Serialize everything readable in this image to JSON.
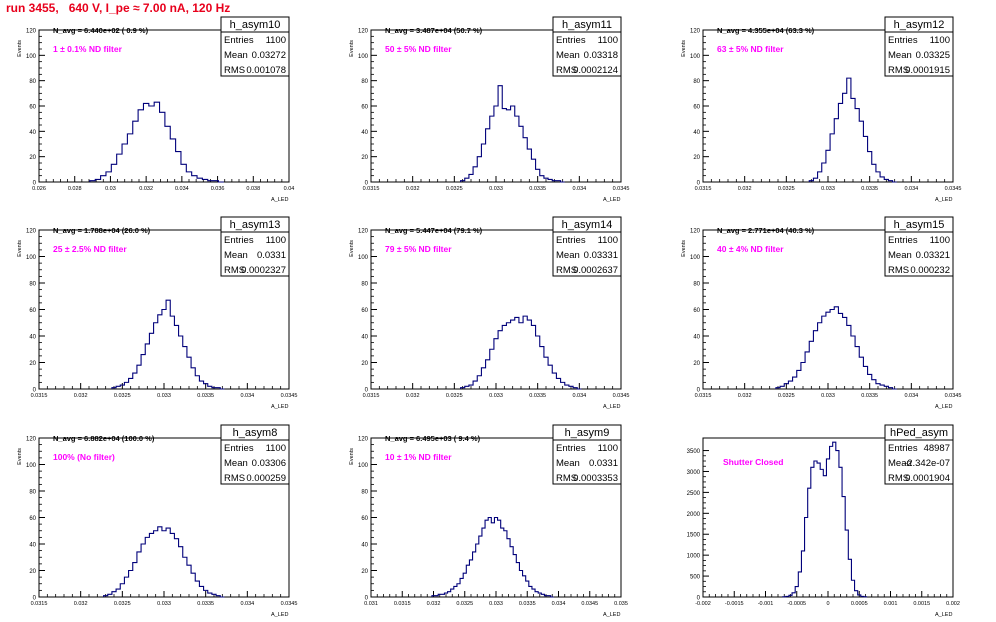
{
  "page_title": "run 3455,   640 V, I_pe ≈ 7.00 nA, 120 Hz",
  "colors": {
    "title": "#e8001c",
    "histogram": "#00007a",
    "filter_label": "#ff00ff",
    "frame": "#000000"
  },
  "y_axis_label": "Events",
  "chart_data": [
    {
      "type": "bar",
      "histogram": "h_asym10",
      "title": "h_asym10",
      "xlabel": "A_LED",
      "ylabel": "Events",
      "nav": "N_avg = 6.440e+02 ( 0.9 %)",
      "filter": "1 ± 0.1% ND filter",
      "stats": {
        "entries": "1100",
        "mean": "0.03272",
        "rms": "0.001078"
      },
      "xlim": [
        0.026,
        0.04
      ],
      "ylim": [
        0,
        120
      ],
      "xticks": [
        "0.026",
        "0.028",
        "0.03",
        "0.032",
        "0.034",
        "0.036",
        "0.038",
        "0.04"
      ],
      "yticks": [
        "0",
        "20",
        "40",
        "60",
        "80",
        "100",
        "120"
      ],
      "x": [
        0.029,
        0.0293,
        0.0296,
        0.0299,
        0.0302,
        0.0305,
        0.0308,
        0.0311,
        0.0314,
        0.0317,
        0.032,
        0.0323,
        0.0326,
        0.0329,
        0.0332,
        0.0335,
        0.0338,
        0.0341,
        0.0344,
        0.0347,
        0.035,
        0.0353,
        0.0356,
        0.0359,
        0.0362
      ],
      "values": [
        1,
        2,
        5,
        8,
        14,
        22,
        30,
        38,
        48,
        57,
        62,
        60,
        63,
        55,
        44,
        34,
        24,
        14,
        8,
        5,
        3,
        2,
        1,
        1,
        0
      ]
    },
    {
      "type": "bar",
      "histogram": "h_asym11",
      "title": "h_asym11",
      "xlabel": "A_LED",
      "ylabel": "Events",
      "nav": "N_avg = 3.487e+04 (50.7 %)",
      "filter": "50 ± 5% ND filter",
      "stats": {
        "entries": "1100",
        "mean": "0.03318",
        "rms": "0.0002124"
      },
      "xlim": [
        0.0315,
        0.0345
      ],
      "ylim": [
        0,
        120
      ],
      "xticks": [
        "0.0315",
        "0.032",
        "0.0325",
        "0.033",
        "0.0335",
        "0.034",
        "0.0345"
      ],
      "yticks": [
        "0",
        "20",
        "40",
        "60",
        "80",
        "100",
        "120"
      ],
      "x": [
        0.0326,
        0.03265,
        0.0327,
        0.03275,
        0.0328,
        0.03285,
        0.0329,
        0.03295,
        0.033,
        0.03305,
        0.0331,
        0.03315,
        0.0332,
        0.03325,
        0.0333,
        0.03335,
        0.0334,
        0.03345,
        0.0335,
        0.03355,
        0.0336,
        0.03365,
        0.0337,
        0.03375,
        0.0338
      ],
      "values": [
        1,
        3,
        6,
        12,
        20,
        30,
        42,
        52,
        60,
        76,
        58,
        57,
        60,
        52,
        44,
        35,
        26,
        18,
        10,
        5,
        3,
        2,
        1,
        1,
        0
      ]
    },
    {
      "type": "bar",
      "histogram": "h_asym12",
      "title": "h_asym12",
      "xlabel": "A_LED",
      "ylabel": "Events",
      "nav": "N_avg = 4.355e+04 (63.3 %)",
      "filter": "63 ± 5% ND filter",
      "stats": {
        "entries": "1100",
        "mean": "0.03325",
        "rms": "0.0001915"
      },
      "xlim": [
        0.0315,
        0.0345
      ],
      "ylim": [
        0,
        120
      ],
      "xticks": [
        "0.0315",
        "0.032",
        "0.0325",
        "0.033",
        "0.0335",
        "0.034",
        "0.0345"
      ],
      "yticks": [
        "0",
        "20",
        "40",
        "60",
        "80",
        "100",
        "120"
      ],
      "x": [
        0.0328,
        0.03285,
        0.0329,
        0.03295,
        0.033,
        0.03305,
        0.0331,
        0.03315,
        0.0332,
        0.03325,
        0.0333,
        0.03335,
        0.0334,
        0.03345,
        0.0335,
        0.03355,
        0.0336,
        0.03365,
        0.0337,
        0.03375,
        0.0338
      ],
      "values": [
        1,
        3,
        8,
        15,
        25,
        38,
        50,
        62,
        70,
        82,
        66,
        58,
        48,
        36,
        24,
        14,
        8,
        4,
        2,
        1,
        0
      ]
    },
    {
      "type": "bar",
      "histogram": "h_asym13",
      "title": "h_asym13",
      "xlabel": "A_LED",
      "ylabel": "Events",
      "nav": "N_avg = 1.788e+04 (26.0 %)",
      "filter": "25 ± 2.5% ND filter",
      "stats": {
        "entries": "1100",
        "mean": "0.0331",
        "rms": "0.0002327"
      },
      "xlim": [
        0.0315,
        0.0345
      ],
      "ylim": [
        0,
        120
      ],
      "xticks": [
        "0.0315",
        "0.032",
        "0.0325",
        "0.033",
        "0.0335",
        "0.034",
        "0.0345"
      ],
      "yticks": [
        "0",
        "20",
        "40",
        "60",
        "80",
        "100",
        "120"
      ],
      "x": [
        0.0324,
        0.03245,
        0.0325,
        0.03255,
        0.0326,
        0.03265,
        0.0327,
        0.03275,
        0.0328,
        0.03285,
        0.0329,
        0.03295,
        0.033,
        0.03305,
        0.0331,
        0.03315,
        0.0332,
        0.03325,
        0.0333,
        0.03335,
        0.0334,
        0.03345,
        0.0335,
        0.03355,
        0.0336,
        0.03365,
        0.0337
      ],
      "values": [
        1,
        2,
        3,
        5,
        8,
        12,
        18,
        26,
        34,
        42,
        50,
        56,
        60,
        67,
        55,
        48,
        40,
        32,
        24,
        16,
        10,
        6,
        4,
        2,
        1,
        1,
        0
      ]
    },
    {
      "type": "bar",
      "histogram": "h_asym14",
      "title": "h_asym14",
      "xlabel": "A_LED",
      "ylabel": "Events",
      "nav": "N_avg = 5.447e+04 (79.1 %)",
      "filter": "79 ± 5% ND filter",
      "stats": {
        "entries": "1100",
        "mean": "0.03331",
        "rms": "0.0002637"
      },
      "xlim": [
        0.0315,
        0.0345
      ],
      "ylim": [
        0,
        120
      ],
      "xticks": [
        "0.0315",
        "0.032",
        "0.0325",
        "0.033",
        "0.0335",
        "0.034",
        "0.0345"
      ],
      "yticks": [
        "0",
        "20",
        "40",
        "60",
        "80",
        "100",
        "120"
      ],
      "x": [
        0.0326,
        0.03265,
        0.0327,
        0.03275,
        0.0328,
        0.03285,
        0.0329,
        0.03295,
        0.033,
        0.03305,
        0.0331,
        0.03315,
        0.0332,
        0.03325,
        0.0333,
        0.03335,
        0.0334,
        0.03345,
        0.0335,
        0.03355,
        0.0336,
        0.03365,
        0.0337,
        0.03375,
        0.0338,
        0.03385,
        0.0339,
        0.03395,
        0.034
      ],
      "values": [
        1,
        2,
        3,
        6,
        10,
        16,
        22,
        30,
        38,
        44,
        48,
        50,
        52,
        54,
        50,
        55,
        52,
        48,
        40,
        32,
        24,
        18,
        12,
        8,
        5,
        3,
        2,
        1,
        0
      ]
    },
    {
      "type": "bar",
      "histogram": "h_asym15",
      "title": "h_asym15",
      "xlabel": "A_LED",
      "ylabel": "Events",
      "nav": "N_avg = 2.771e+04 (40.3 %)",
      "filter": "40 ± 4% ND filter",
      "stats": {
        "entries": "1100",
        "mean": "0.03321",
        "rms": "0.000232"
      },
      "xlim": [
        0.0315,
        0.0345
      ],
      "ylim": [
        0,
        120
      ],
      "xticks": [
        "0.0315",
        "0.032",
        "0.0325",
        "0.033",
        "0.0335",
        "0.034",
        "0.0345"
      ],
      "yticks": [
        "0",
        "20",
        "40",
        "60",
        "80",
        "100",
        "120"
      ],
      "x": [
        0.0324,
        0.03245,
        0.0325,
        0.03255,
        0.0326,
        0.03265,
        0.0327,
        0.03275,
        0.0328,
        0.03285,
        0.0329,
        0.03295,
        0.033,
        0.03305,
        0.0331,
        0.03315,
        0.0332,
        0.03325,
        0.0333,
        0.03335,
        0.0334,
        0.03345,
        0.0335,
        0.03355,
        0.0336,
        0.03365,
        0.0337,
        0.03375,
        0.0338
      ],
      "values": [
        1,
        2,
        4,
        6,
        9,
        14,
        20,
        28,
        36,
        44,
        50,
        55,
        58,
        60,
        62,
        57,
        54,
        48,
        40,
        32,
        24,
        17,
        11,
        7,
        4,
        3,
        2,
        1,
        0
      ]
    },
    {
      "type": "bar",
      "histogram": "h_asym8",
      "title": "h_asym8",
      "xlabel": "A_LED",
      "ylabel": "Events",
      "nav": "N_avg = 6.882e+04 (100.0 %)",
      "filter": "100% (No filter)",
      "stats": {
        "entries": "1100",
        "mean": "0.03306",
        "rms": "0.000259"
      },
      "xlim": [
        0.0315,
        0.0345
      ],
      "ylim": [
        0,
        120
      ],
      "xticks": [
        "0.0315",
        "0.032",
        "0.0325",
        "0.033",
        "0.0335",
        "0.034",
        "0.0345"
      ],
      "yticks": [
        "0",
        "20",
        "40",
        "60",
        "80",
        "100",
        "120"
      ],
      "x": [
        0.0323,
        0.03235,
        0.0324,
        0.03245,
        0.0325,
        0.03255,
        0.0326,
        0.03265,
        0.0327,
        0.03275,
        0.0328,
        0.03285,
        0.0329,
        0.03295,
        0.033,
        0.03305,
        0.0331,
        0.03315,
        0.0332,
        0.03325,
        0.0333,
        0.03335,
        0.0334,
        0.03345,
        0.0335,
        0.03355,
        0.0336,
        0.03365,
        0.0337
      ],
      "values": [
        1,
        2,
        4,
        6,
        10,
        15,
        20,
        26,
        34,
        40,
        45,
        48,
        50,
        53,
        50,
        52,
        48,
        44,
        38,
        30,
        24,
        18,
        12,
        8,
        5,
        3,
        2,
        1,
        0
      ]
    },
    {
      "type": "bar",
      "histogram": "h_asym9",
      "title": "h_asym9",
      "xlabel": "A_LED",
      "ylabel": "Events",
      "nav": "N_avg = 6.495e+03 ( 9.4 %)",
      "filter": "10 ± 1% ND filter",
      "stats": {
        "entries": "1100",
        "mean": "0.0331",
        "rms": "0.0003353"
      },
      "xlim": [
        0.031,
        0.035
      ],
      "ylim": [
        0,
        120
      ],
      "xticks": [
        "0.031",
        "0.0315",
        "0.032",
        "0.0325",
        "0.033",
        "0.0335",
        "0.034",
        "0.0345",
        "0.035"
      ],
      "yticks": [
        "0",
        "20",
        "40",
        "60",
        "80",
        "100",
        "120"
      ],
      "x": [
        0.032,
        0.03205,
        0.0321,
        0.03215,
        0.0322,
        0.03225,
        0.0323,
        0.03235,
        0.0324,
        0.03245,
        0.0325,
        0.03255,
        0.0326,
        0.03265,
        0.0327,
        0.03275,
        0.0328,
        0.03285,
        0.0329,
        0.03295,
        0.033,
        0.03305,
        0.0331,
        0.03315,
        0.0332,
        0.03325,
        0.0333,
        0.03335,
        0.0334,
        0.03345,
        0.0335,
        0.03355,
        0.0336,
        0.03365,
        0.0337,
        0.03375,
        0.0338,
        0.03385,
        0.0339
      ],
      "values": [
        1,
        1,
        2,
        2,
        3,
        4,
        6,
        8,
        10,
        14,
        18,
        24,
        28,
        34,
        40,
        46,
        52,
        58,
        60,
        56,
        60,
        58,
        52,
        50,
        44,
        38,
        32,
        26,
        20,
        16,
        12,
        8,
        6,
        4,
        3,
        2,
        1,
        1,
        0
      ]
    },
    {
      "type": "bar",
      "histogram": "hPed_asym",
      "title": "hPed_asym",
      "xlabel": "A_LED",
      "ylabel": "",
      "nav": "",
      "filter": "Shutter Closed",
      "stats": {
        "entries": "48987",
        "mean": "-2.342e-07",
        "rms": "0.0001904"
      },
      "xlim": [
        -0.002,
        0.002
      ],
      "ylim": [
        0,
        3800
      ],
      "xticks": [
        "-0.002",
        "-0.0015",
        "-0.001",
        "-0.0005",
        "0",
        "0.0005",
        "0.001",
        "0.0015",
        "0.002"
      ],
      "yticks": [
        "0",
        "500",
        "1000",
        "1500",
        "2000",
        "2500",
        "3000",
        "3500"
      ],
      "x": [
        -0.0007,
        -0.00065,
        -0.0006,
        -0.00055,
        -0.0005,
        -0.00045,
        -0.0004,
        -0.00035,
        -0.0003,
        -0.00025,
        -0.0002,
        -0.00015,
        -0.0001,
        -5e-05,
        0.0,
        5e-05,
        0.0001,
        0.00015,
        0.0002,
        0.00025,
        0.0003,
        0.00035,
        0.0004,
        0.00045,
        0.0005,
        0.00055,
        0.0006
      ],
      "values": [
        5,
        15,
        40,
        100,
        250,
        600,
        1100,
        1900,
        2600,
        3100,
        3250,
        3200,
        3050,
        2900,
        3300,
        3600,
        3700,
        3500,
        3100,
        2400,
        1600,
        900,
        400,
        150,
        50,
        15,
        5
      ]
    }
  ]
}
